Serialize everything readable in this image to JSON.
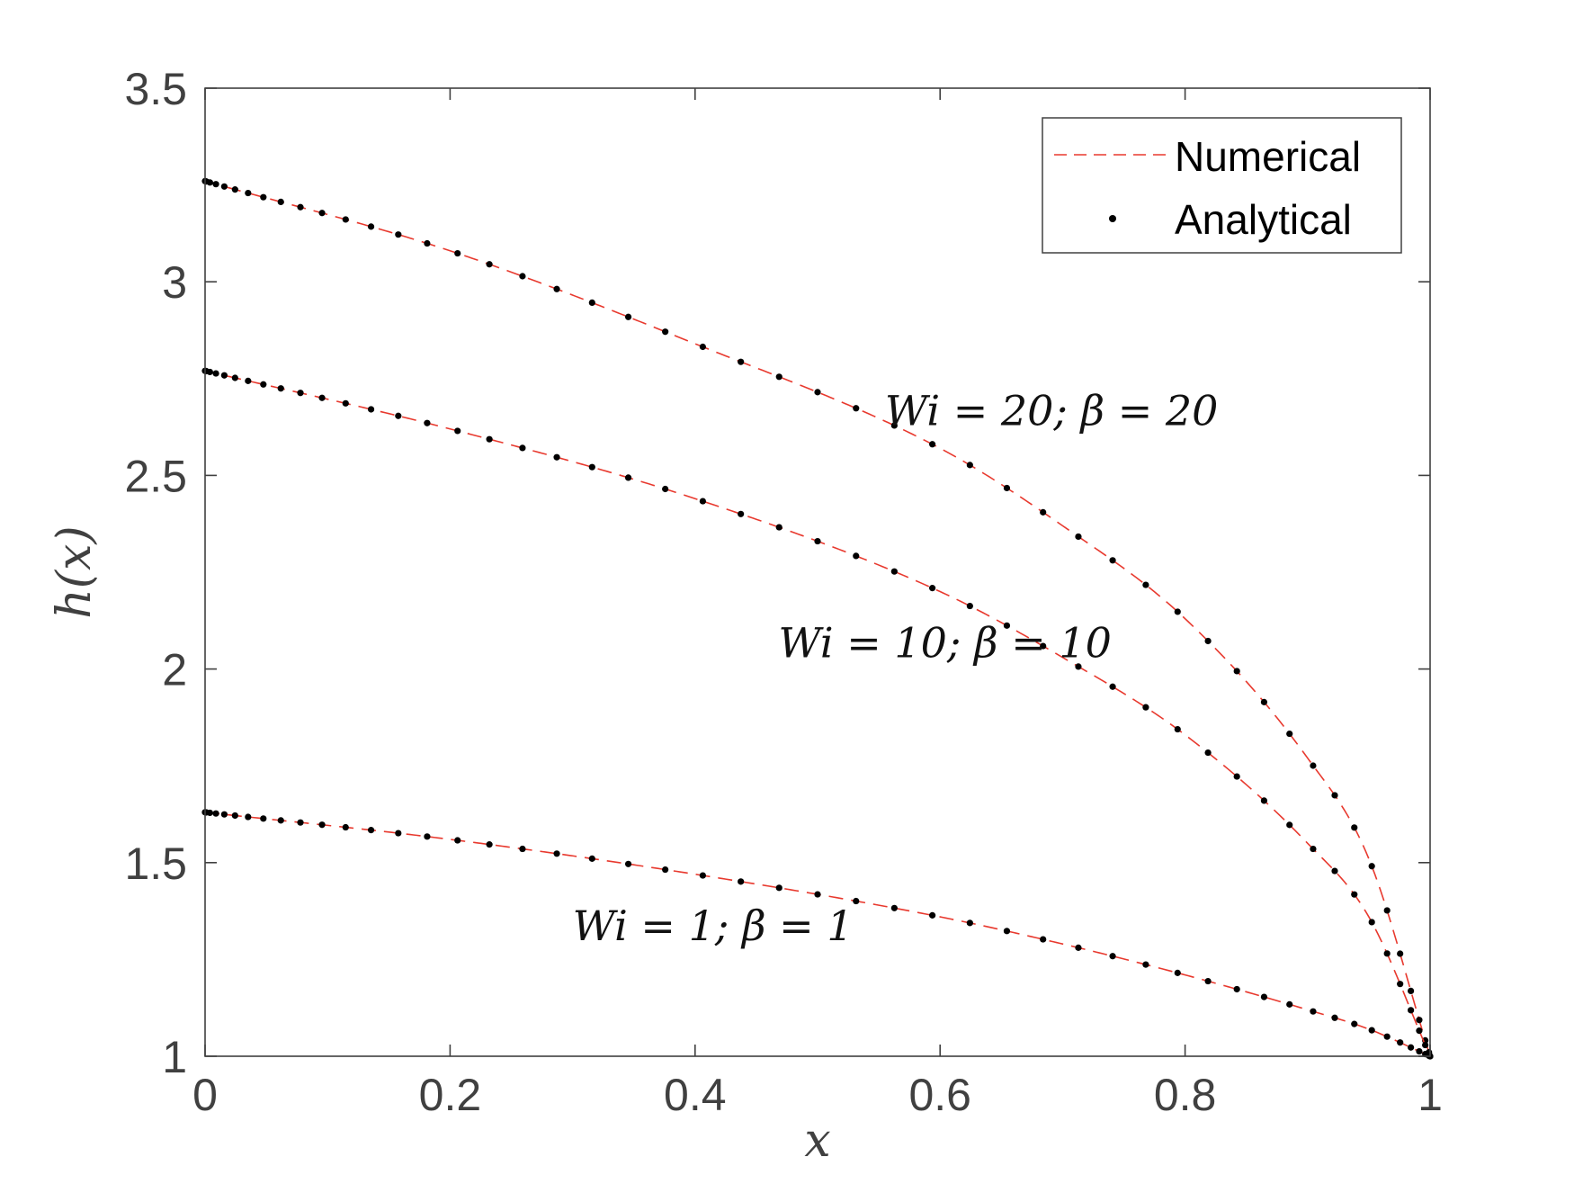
{
  "chart_data": {
    "type": "line",
    "xlabel": "x",
    "ylabel": "h(x)",
    "xlim": [
      0,
      1
    ],
    "ylim": [
      1,
      3.5
    ],
    "xticks": [
      "0",
      "0.2",
      "0.4",
      "0.6",
      "0.8",
      "1"
    ],
    "yticks": [
      "1",
      "1.5",
      "2",
      "2.5",
      "3",
      "3.5"
    ],
    "grid": false,
    "legend": {
      "position": "top-right",
      "entries": [
        {
          "label": "Numerical",
          "style": "dashed-line",
          "color": "#e8392e"
        },
        {
          "label": "Analytical",
          "style": "dot",
          "color": "#000000"
        }
      ]
    },
    "annotations": [
      {
        "text": "Wi = 20; β = 20",
        "x": 0.555,
        "y": 2.63
      },
      {
        "text": "Wi = 10; β = 10",
        "x": 0.468,
        "y": 2.03
      },
      {
        "text": "Wi = 1; β = 1",
        "x": 0.3,
        "y": 1.3
      }
    ],
    "series": [
      {
        "x": [
          0,
          0.2,
          0.4,
          0.6,
          0.7,
          0.8,
          0.9,
          0.95,
          1.0
        ],
        "y": [
          3.26,
          3.08,
          2.84,
          2.57,
          2.37,
          2.13,
          1.77,
          1.51,
          1.0
        ]
      },
      {
        "x": [
          0,
          0.2,
          0.4,
          0.6,
          0.7,
          0.8,
          0.9,
          0.95,
          1.0
        ],
        "y": [
          2.77,
          2.62,
          2.44,
          2.2,
          2.03,
          1.83,
          1.55,
          1.36,
          1.0
        ]
      },
      {
        "x": [
          0,
          0.2,
          0.4,
          0.6,
          0.7,
          0.8,
          0.9,
          0.95,
          1.0
        ],
        "y": [
          1.63,
          1.56,
          1.47,
          1.36,
          1.29,
          1.21,
          1.12,
          1.07,
          1.0
        ]
      }
    ]
  },
  "colors": {
    "numerical": "#e8392e",
    "analytical": "#000000",
    "axis": "#404040"
  }
}
